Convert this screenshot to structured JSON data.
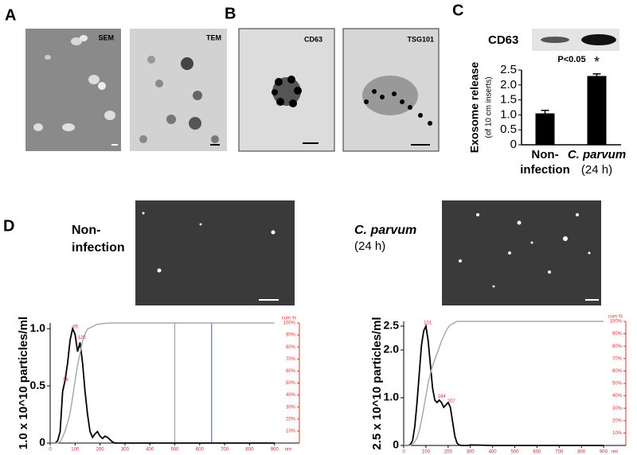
{
  "panels": {
    "A": {
      "label": "A",
      "images": [
        "SEM",
        "TEM"
      ]
    },
    "B": {
      "label": "B",
      "images": [
        "CD63",
        "TSG101"
      ]
    },
    "C": {
      "label": "C",
      "blot_label": "CD63"
    },
    "D": {
      "label": "D",
      "conditions": [
        [
          "Non-",
          "infection"
        ],
        [
          "C. parvum",
          "(24 h)"
        ]
      ]
    }
  },
  "chart_data": [
    {
      "type": "bar",
      "ylabel": "Exosome release",
      "ylabel_note": "(of 10 cm inserts)",
      "categories": [
        [
          "Non-",
          "infection"
        ],
        [
          "C. parvum",
          "(24 h)"
        ]
      ],
      "values": [
        1.05,
        2.3
      ],
      "errors": [
        0.1,
        0.07
      ],
      "color": "#000000",
      "ylim": [
        0,
        2.5
      ],
      "yticks": [
        0,
        0.5,
        {
          "value": 1,
          "label": "1.0"
        },
        1.5,
        {
          "value": 2,
          "label": "2.0"
        },
        2.5
      ],
      "annotations": [
        "P<0.05",
        "*"
      ]
    },
    {
      "type": "line",
      "ylabel": "1.0 x 10^10 particles/ml",
      "y2label": "cum %",
      "xlabel": "nm",
      "x": [
        0,
        10,
        20,
        30,
        40,
        50,
        60,
        70,
        80,
        90,
        100,
        110,
        120,
        130,
        140,
        150,
        160,
        170,
        180,
        190,
        200,
        210,
        220,
        230,
        240,
        250,
        260,
        270,
        280,
        290,
        300,
        400,
        500,
        600,
        700,
        800,
        900
      ],
      "series": [
        {
          "name": "concentration",
          "color": "#000000",
          "values": [
            0,
            0,
            0,
            0.02,
            0.1,
            0.45,
            0.55,
            0.7,
            0.9,
            1.0,
            0.95,
            0.8,
            0.88,
            0.7,
            0.45,
            0.25,
            0.1,
            0.05,
            0.08,
            0.1,
            0.06,
            0.04,
            0.06,
            0.05,
            0.03,
            0.01,
            0,
            0,
            0,
            0,
            0,
            0,
            0,
            0,
            0,
            0,
            0
          ]
        },
        {
          "name": "cumulative",
          "color": "#aaaaaa",
          "axis": "y2",
          "values": [
            0,
            0,
            0,
            0,
            1,
            5,
            10,
            17,
            25,
            38,
            52,
            65,
            75,
            85,
            91,
            95,
            96,
            97,
            98,
            99,
            99,
            99.5,
            99.7,
            99.8,
            99.9,
            100,
            100,
            100,
            100,
            100,
            100,
            100,
            100,
            100,
            100,
            100,
            100
          ]
        }
      ],
      "peak_labels": [
        56,
        95,
        120
      ],
      "reference_lines": [
        {
          "x": 500,
          "color": "#999999"
        },
        {
          "x": 648,
          "color": "#3355cc"
        }
      ],
      "xlim": [
        0,
        1000
      ],
      "xticks": [
        0,
        100,
        200,
        300,
        400,
        500,
        600,
        700,
        800,
        900
      ],
      "ylim": [
        0,
        1.05
      ],
      "yticks": [
        0,
        0.5,
        {
          "value": 1,
          "label": "1.0"
        }
      ],
      "y2lim": [
        0,
        100
      ],
      "y2ticks": [
        {
          "value": 10,
          "label": "10%"
        },
        {
          "value": 20,
          "label": "20%"
        },
        {
          "value": 30,
          "label": "30%"
        },
        {
          "value": 40,
          "label": "40%"
        },
        {
          "value": 50,
          "label": "50%"
        },
        {
          "value": 60,
          "label": "60%"
        },
        {
          "value": 70,
          "label": "70%"
        },
        {
          "value": 80,
          "label": "80%"
        },
        {
          "value": 90,
          "label": "90%"
        },
        {
          "value": 100,
          "label": "100%"
        }
      ],
      "y2color": "#e03030"
    },
    {
      "type": "line",
      "ylabel": "2.5 x 10^10 particles/ml",
      "y2label": "cum %",
      "xlabel": "nm",
      "x": [
        0,
        10,
        20,
        30,
        40,
        50,
        60,
        70,
        80,
        90,
        100,
        110,
        120,
        130,
        140,
        150,
        160,
        170,
        180,
        190,
        200,
        210,
        220,
        230,
        240,
        250,
        260,
        270,
        280,
        290,
        300,
        400,
        500,
        600,
        700,
        800,
        900
      ],
      "series": [
        {
          "name": "concentration",
          "color": "#000000",
          "values": [
            0,
            0,
            0,
            0.02,
            0.1,
            0.4,
            0.9,
            1.5,
            2.1,
            2.4,
            2.5,
            2.2,
            1.7,
            1.2,
            0.95,
            0.9,
            0.95,
            0.9,
            0.8,
            0.85,
            0.9,
            0.8,
            0.5,
            0.2,
            0.05,
            0.01,
            0,
            0,
            0,
            0,
            0.01,
            0,
            0,
            0,
            0,
            0,
            0
          ]
        },
        {
          "name": "cumulative",
          "color": "#aaaaaa",
          "axis": "y2",
          "values": [
            0,
            0,
            0,
            0,
            1,
            3,
            6,
            12,
            20,
            30,
            40,
            50,
            58,
            64,
            69,
            74,
            79,
            84,
            88,
            92,
            95,
            97,
            98,
            99,
            100,
            100,
            100,
            100,
            100,
            100,
            100,
            100,
            100,
            100,
            100,
            100,
            100
          ]
        }
      ],
      "peak_labels": [
        101,
        164,
        207
      ],
      "reference_lines": [],
      "xlim": [
        0,
        1000
      ],
      "xticks": [
        0,
        100,
        200,
        300,
        400,
        500,
        600,
        700,
        800,
        900
      ],
      "ylim": [
        0,
        2.6
      ],
      "yticks": [
        0,
        {
          "value": 1,
          "label": "1.0"
        },
        {
          "value": 2,
          "label": "2.0"
        },
        2.5
      ],
      "y2lim": [
        0,
        100
      ],
      "y2ticks": [
        {
          "value": 10,
          "label": "10%"
        },
        {
          "value": 20,
          "label": "20%"
        },
        {
          "value": 30,
          "label": "30%"
        },
        {
          "value": 40,
          "label": "40%"
        },
        {
          "value": 50,
          "label": "50%"
        },
        {
          "value": 60,
          "label": "60%"
        },
        {
          "value": 70,
          "label": "70%"
        },
        {
          "value": 80,
          "label": "80%"
        },
        {
          "value": 90,
          "label": "90%"
        },
        {
          "value": 100,
          "label": "100%"
        }
      ],
      "y2color": "#e03030"
    }
  ]
}
